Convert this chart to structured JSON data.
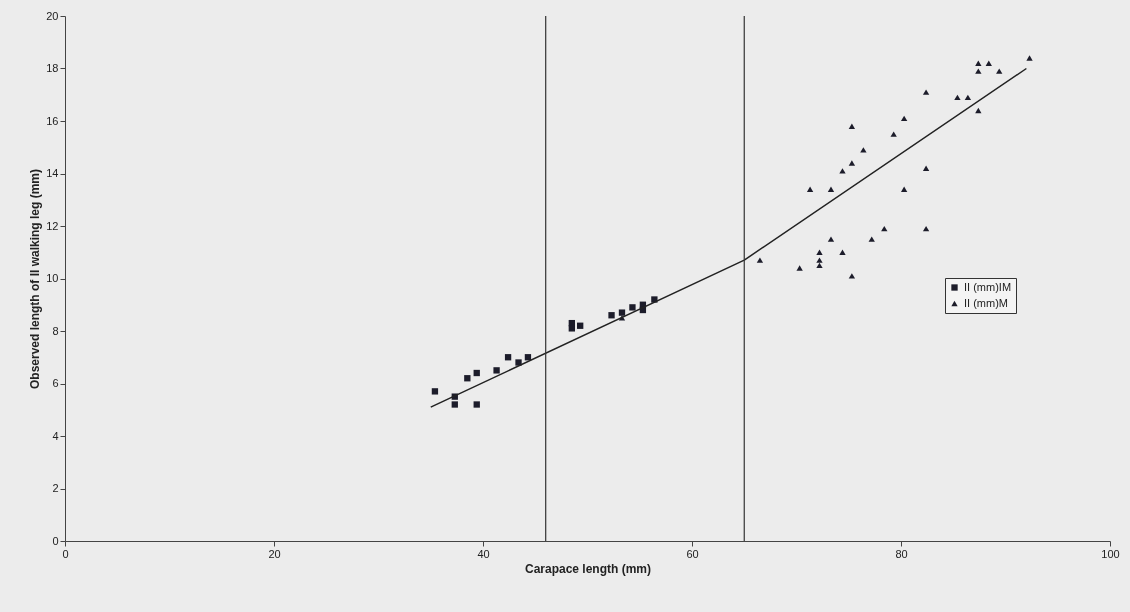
{
  "chart_data": {
    "type": "scatter",
    "xlabel": "Carapace length (mm)",
    "ylabel": "Observed length of II walking leg (mm)",
    "xlim": [
      0,
      100
    ],
    "xticks": [
      0,
      20,
      40,
      60,
      80,
      100
    ],
    "ylim": [
      0,
      20
    ],
    "yticks": [
      0,
      2,
      4,
      6,
      8,
      10,
      12,
      14,
      16,
      18,
      20
    ],
    "grid": false,
    "legend": "right",
    "ref_lines": [
      {
        "axis": "x",
        "value": 46,
        "color": "#333333"
      },
      {
        "axis": "x",
        "value": 65,
        "color": "#333333"
      }
    ],
    "series": [
      {
        "name": "II (mm)IM",
        "marker": "square",
        "color": "#1c1c2a",
        "x": [
          35.4,
          37.3,
          37.3,
          38.5,
          39.4,
          39.4,
          41.3,
          42.4,
          43.4,
          44.3,
          48.5,
          48.5,
          49.3,
          52.3,
          53.3,
          54.3,
          55.3,
          55.3,
          56.4
        ],
        "values": [
          5.7,
          5.5,
          5.2,
          6.2,
          6.4,
          5.2,
          6.5,
          7.0,
          6.8,
          7.0,
          8.1,
          8.3,
          8.2,
          8.6,
          8.7,
          8.9,
          9.0,
          8.8,
          9.2
        ]
      },
      {
        "name": "II (mm)M",
        "marker": "triangle",
        "color": "#1c1c2a",
        "x": [
          53.3,
          66.5,
          70.3,
          71.3,
          72.2,
          72.2,
          72.2,
          73.3,
          73.3,
          74.4,
          74.4,
          75.3,
          75.3,
          75.3,
          76.4,
          77.2,
          78.4,
          79.3,
          80.3,
          80.3,
          82.4,
          82.4,
          82.4,
          85.4,
          86.4,
          87.4,
          87.4,
          87.4,
          88.4,
          89.4,
          92.3
        ],
        "values": [
          8.5,
          10.7,
          10.4,
          13.4,
          11.0,
          10.7,
          10.5,
          13.4,
          11.5,
          14.1,
          11.0,
          15.8,
          14.4,
          10.1,
          14.9,
          11.5,
          11.9,
          15.5,
          16.1,
          13.4,
          17.1,
          14.2,
          11.9,
          16.9,
          16.9,
          16.4,
          17.9,
          18.2,
          18.2,
          17.9,
          18.4
        ]
      },
      {
        "type": "line",
        "color": "#222222",
        "x": [
          35,
          65,
          92
        ],
        "values": [
          5.1,
          10.7,
          18.0
        ]
      }
    ]
  }
}
